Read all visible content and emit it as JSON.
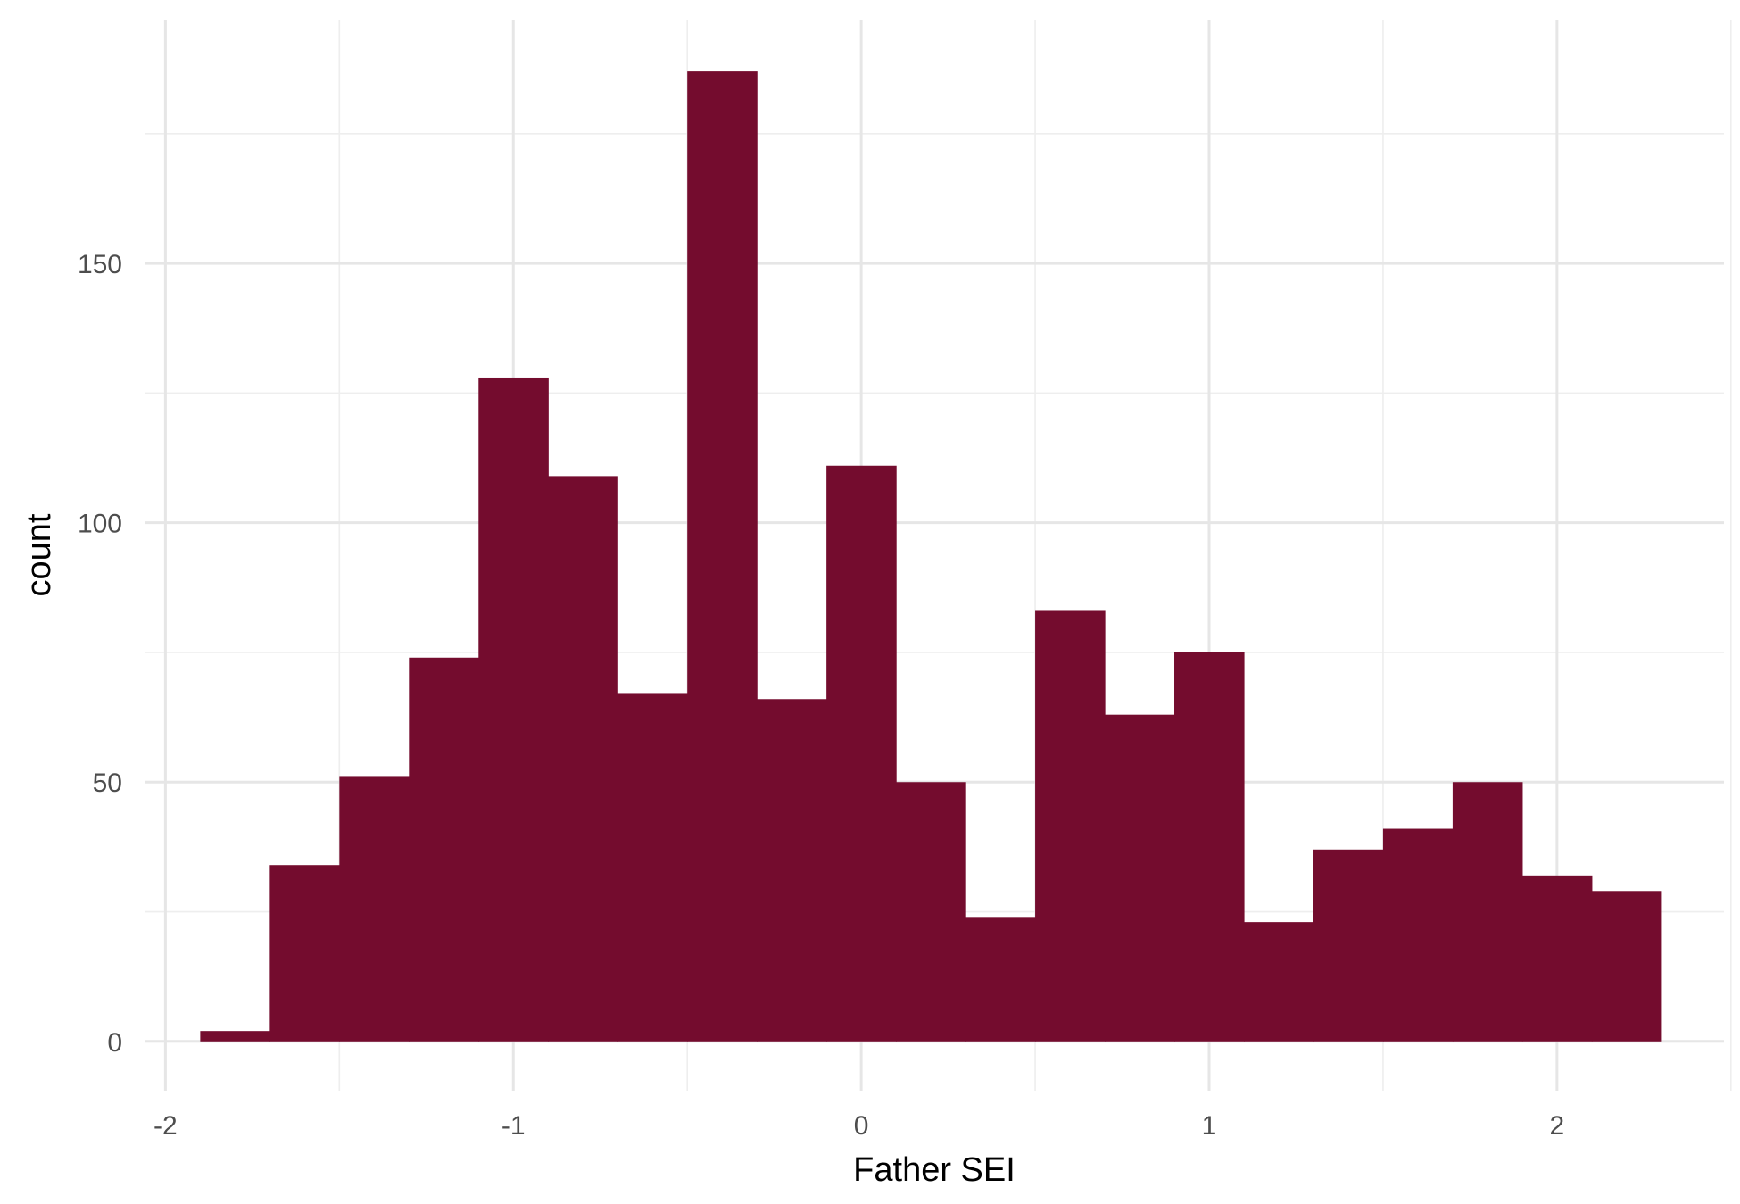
{
  "chart_data": {
    "type": "bar",
    "subtype": "histogram",
    "title": "",
    "xlabel": "Father SEI",
    "ylabel": "count",
    "bar_color": "#740c2e",
    "background": "#ffffff",
    "grid": true,
    "xlim": [
      -2.06,
      2.48
    ],
    "ylim": [
      -9.5,
      197
    ],
    "x_ticks": [
      -2,
      -1,
      0,
      1,
      2
    ],
    "x_tick_labels": [
      "-2",
      "-1",
      "0",
      "1",
      "2"
    ],
    "x_minor_ticks": [
      -1.5,
      -0.5,
      0.5,
      1.5,
      2.5
    ],
    "y_ticks": [
      0,
      50,
      100,
      150
    ],
    "y_tick_labels": [
      "0",
      "50",
      "100",
      "150"
    ],
    "y_minor_ticks": [
      25,
      75,
      125,
      175
    ],
    "bin_edges": [
      -1.9,
      -1.7,
      -1.5,
      -1.3,
      -1.1,
      -0.9,
      -0.7,
      -0.5,
      -0.3,
      -0.1,
      0.1,
      0.3,
      0.5,
      0.7,
      0.9,
      1.1,
      1.3,
      1.5,
      1.7,
      1.9,
      2.1,
      2.3
    ],
    "values": [
      2,
      34,
      51,
      74,
      128,
      109,
      67,
      187,
      66,
      111,
      50,
      24,
      83,
      63,
      75,
      23,
      37,
      41,
      50,
      32,
      29
    ]
  }
}
